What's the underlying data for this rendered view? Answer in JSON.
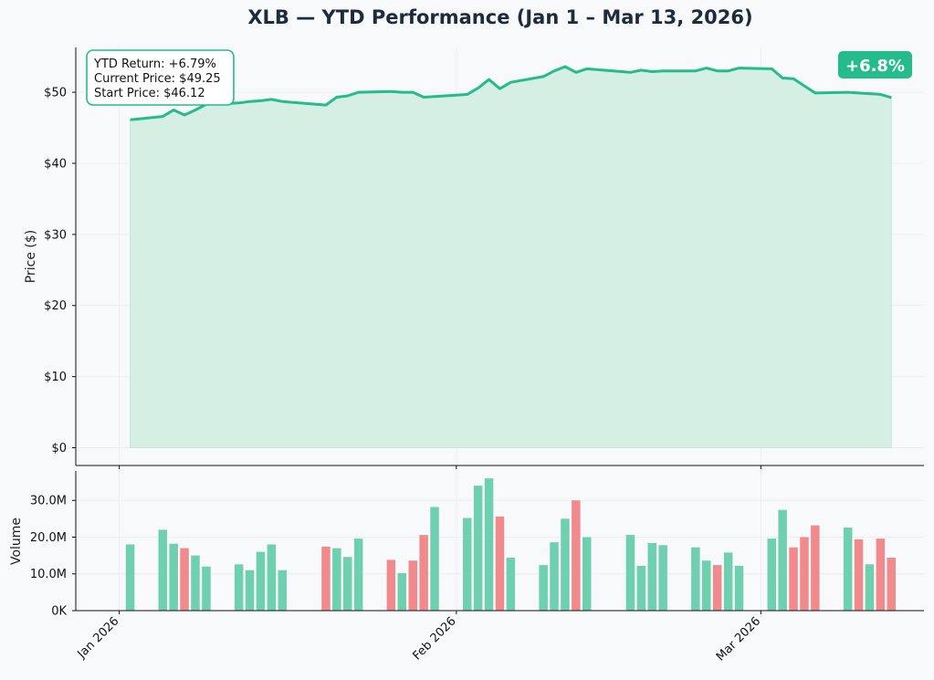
{
  "chart_data": {
    "type": "line",
    "title": "XLB — YTD Performance (Jan 1 – Mar 13, 2026)",
    "price_panel": {
      "ylabel": "Price ($)",
      "ylim": [
        -2.5,
        56.3
      ],
      "yticks": [
        0,
        10,
        20,
        30,
        40,
        50
      ],
      "ytick_labels": [
        "$0",
        "$10",
        "$20",
        "$30",
        "$40",
        "$50"
      ],
      "fill": "area under line",
      "grid": true
    },
    "volume_panel": {
      "ylabel": "Volume",
      "ylim": [
        0,
        38
      ],
      "yticks": [
        0,
        10,
        20,
        30
      ],
      "ytick_labels": [
        "0K",
        "10.0M",
        "20.0M",
        "30.0M"
      ],
      "grid": true
    },
    "x_ticks": [
      {
        "date": "2026-01-01",
        "label": "Jan 2026"
      },
      {
        "date": "2026-02-01",
        "label": "Feb 2026"
      },
      {
        "date": "2026-03-01",
        "label": "Mar 2026"
      }
    ],
    "xlim": [
      "2025-12-28",
      "2026-03-16"
    ],
    "series": [
      {
        "metric": "Close price",
        "unit": "$",
        "points": [
          [
            "2026-01-02",
            46.12
          ],
          [
            "2026-01-05",
            46.6
          ],
          [
            "2026-01-06",
            47.5
          ],
          [
            "2026-01-07",
            46.8
          ],
          [
            "2026-01-08",
            47.5
          ],
          [
            "2026-01-09",
            48.3
          ],
          [
            "2026-01-12",
            48.5
          ],
          [
            "2026-01-13",
            48.7
          ],
          [
            "2026-01-14",
            48.8
          ],
          [
            "2026-01-15",
            49.0
          ],
          [
            "2026-01-16",
            48.7
          ],
          [
            "2026-01-20",
            48.2
          ],
          [
            "2026-01-21",
            49.3
          ],
          [
            "2026-01-22",
            49.5
          ],
          [
            "2026-01-23",
            50.0
          ],
          [
            "2026-01-26",
            50.1
          ],
          [
            "2026-01-27",
            50.0
          ],
          [
            "2026-01-28",
            50.0
          ],
          [
            "2026-01-29",
            49.3
          ],
          [
            "2026-01-30",
            49.4
          ],
          [
            "2026-02-02",
            49.7
          ],
          [
            "2026-02-03",
            50.6
          ],
          [
            "2026-02-04",
            51.8
          ],
          [
            "2026-02-05",
            50.5
          ],
          [
            "2026-02-06",
            51.4
          ],
          [
            "2026-02-09",
            52.2
          ],
          [
            "2026-02-10",
            53.0
          ],
          [
            "2026-02-11",
            53.6
          ],
          [
            "2026-02-12",
            52.8
          ],
          [
            "2026-02-13",
            53.3
          ],
          [
            "2026-02-17",
            52.8
          ],
          [
            "2026-02-18",
            53.1
          ],
          [
            "2026-02-19",
            52.9
          ],
          [
            "2026-02-20",
            53.0
          ],
          [
            "2026-02-23",
            53.0
          ],
          [
            "2026-02-24",
            53.4
          ],
          [
            "2026-02-25",
            53.0
          ],
          [
            "2026-02-26",
            53.0
          ],
          [
            "2026-02-27",
            53.4
          ],
          [
            "2026-03-02",
            53.3
          ],
          [
            "2026-03-03",
            52.0
          ],
          [
            "2026-03-04",
            51.9
          ],
          [
            "2026-03-05",
            50.9
          ],
          [
            "2026-03-06",
            49.9
          ],
          [
            "2026-03-09",
            50.0
          ],
          [
            "2026-03-10",
            49.9
          ],
          [
            "2026-03-11",
            49.8
          ],
          [
            "2026-03-12",
            49.7
          ],
          [
            "2026-03-13",
            49.25
          ]
        ]
      },
      {
        "metric": "Volume",
        "unit": "M",
        "points": [
          [
            "2026-01-02",
            18.0,
            "up"
          ],
          [
            "2026-01-05",
            22.0,
            "up"
          ],
          [
            "2026-01-06",
            18.2,
            "up"
          ],
          [
            "2026-01-07",
            17.0,
            "down"
          ],
          [
            "2026-01-08",
            15.0,
            "up"
          ],
          [
            "2026-01-09",
            12.0,
            "up"
          ],
          [
            "2026-01-12",
            12.6,
            "up"
          ],
          [
            "2026-01-13",
            11.0,
            "up"
          ],
          [
            "2026-01-14",
            16.0,
            "up"
          ],
          [
            "2026-01-15",
            18.0,
            "up"
          ],
          [
            "2026-01-16",
            11.0,
            "up"
          ],
          [
            "2026-01-20",
            17.4,
            "down"
          ],
          [
            "2026-01-21",
            17.0,
            "up"
          ],
          [
            "2026-01-22",
            14.6,
            "up"
          ],
          [
            "2026-01-23",
            19.6,
            "up"
          ],
          [
            "2026-01-26",
            13.8,
            "down"
          ],
          [
            "2026-01-27",
            10.2,
            "up"
          ],
          [
            "2026-01-28",
            13.6,
            "down"
          ],
          [
            "2026-01-29",
            20.6,
            "down"
          ],
          [
            "2026-01-30",
            28.2,
            "up"
          ],
          [
            "2026-02-02",
            25.2,
            "up"
          ],
          [
            "2026-02-03",
            34.0,
            "up"
          ],
          [
            "2026-02-04",
            36.0,
            "up"
          ],
          [
            "2026-02-05",
            25.6,
            "down"
          ],
          [
            "2026-02-06",
            14.4,
            "up"
          ],
          [
            "2026-02-09",
            12.4,
            "up"
          ],
          [
            "2026-02-10",
            18.6,
            "up"
          ],
          [
            "2026-02-11",
            25.0,
            "up"
          ],
          [
            "2026-02-12",
            30.0,
            "down"
          ],
          [
            "2026-02-13",
            20.0,
            "up"
          ],
          [
            "2026-02-17",
            20.6,
            "up"
          ],
          [
            "2026-02-18",
            12.2,
            "up"
          ],
          [
            "2026-02-19",
            18.4,
            "up"
          ],
          [
            "2026-02-20",
            17.8,
            "up"
          ],
          [
            "2026-02-23",
            17.2,
            "up"
          ],
          [
            "2026-02-24",
            13.6,
            "up"
          ],
          [
            "2026-02-25",
            12.4,
            "down"
          ],
          [
            "2026-02-26",
            15.8,
            "up"
          ],
          [
            "2026-02-27",
            12.2,
            "up"
          ],
          [
            "2026-03-02",
            19.6,
            "up"
          ],
          [
            "2026-03-03",
            27.4,
            "up"
          ],
          [
            "2026-03-04",
            17.2,
            "down"
          ],
          [
            "2026-03-05",
            20.0,
            "down"
          ],
          [
            "2026-03-06",
            23.2,
            "down"
          ],
          [
            "2026-03-09",
            22.6,
            "up"
          ],
          [
            "2026-03-10",
            19.4,
            "down"
          ],
          [
            "2026-03-11",
            12.6,
            "up"
          ],
          [
            "2026-03-12",
            19.6,
            "down"
          ],
          [
            "2026-03-13",
            14.4,
            "down"
          ]
        ]
      }
    ],
    "info_box": {
      "lines": [
        "YTD Return: +6.79%",
        "Current Price: $49.25",
        "Start Price: $46.12"
      ],
      "placement": "top-left"
    },
    "badge": {
      "text": "+6.8%",
      "placement": "top-right"
    },
    "colors": {
      "line": "#25bb8a",
      "fill": "#d5efe5",
      "up": "#6fd0b0",
      "down": "#f08a8c",
      "title": "#1e2b3c",
      "background": "#f8f9fb"
    }
  }
}
